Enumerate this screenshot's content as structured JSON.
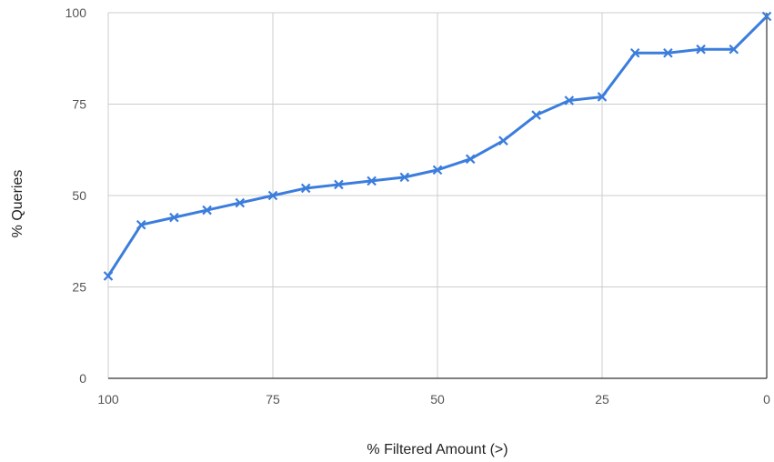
{
  "chart_data": {
    "type": "line",
    "title": "",
    "xlabel": "% Filtered Amount (>)",
    "ylabel": "% Queries",
    "x_axis_reversed": true,
    "xlim": [
      100,
      0
    ],
    "ylim": [
      0,
      100
    ],
    "x_ticks": [
      "100",
      "75",
      "50",
      "25",
      "0"
    ],
    "y_ticks": [
      "0",
      "25",
      "50",
      "75",
      "100"
    ],
    "grid": true,
    "legend": "none",
    "series": [
      {
        "color": "#3b7ddd",
        "marker": "x",
        "x": [
          100,
          95,
          90,
          85,
          80,
          75,
          70,
          65,
          60,
          55,
          50,
          45,
          40,
          35,
          30,
          25,
          20,
          15,
          10,
          5,
          0
        ],
        "y": [
          28,
          42,
          44,
          46,
          48,
          50,
          52,
          53,
          54,
          55,
          57,
          60,
          65,
          72,
          76,
          77,
          89,
          89,
          90,
          90,
          99
        ]
      }
    ]
  }
}
